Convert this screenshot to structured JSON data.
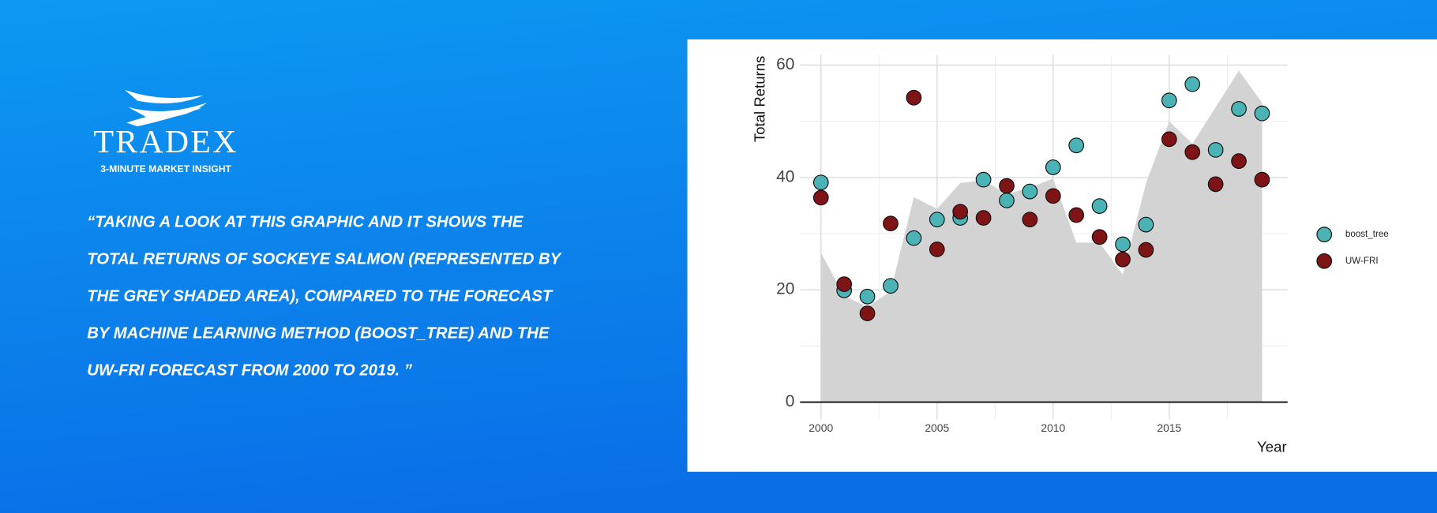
{
  "header": {
    "brand": "TRADEX",
    "tagline": "3-MINUTE MARKET INSIGHT"
  },
  "quote": [
    "“TAKING A LOOK AT THIS GRAPHIC AND IT SHOWS THE",
    "TOTAL RETURNS OF SOCKEYE SALMON (REPRESENTED BY",
    "THE GREY SHADED AREA), COMPARED TO THE FORECAST",
    "BY MACHINE LEARNING METHOD (BOOST_TREE) AND THE",
    "UW-FRI FORECAST FROM 2000 TO 2019. ”"
  ],
  "chart_data": {
    "type": "scatter",
    "x_label": "Year",
    "y_label": "Total Returns",
    "x": [
      2000,
      2001,
      2002,
      2003,
      2004,
      2005,
      2006,
      2007,
      2008,
      2009,
      2010,
      2011,
      2012,
      2013,
      2014,
      2015,
      2016,
      2017,
      2018,
      2019
    ],
    "area": {
      "color": "#d3d3d3",
      "values": [
        26.6,
        18.9,
        17,
        19.7,
        36.5,
        34.4,
        39,
        39.5,
        37,
        38.2,
        39.8,
        28.4,
        28.4,
        22.7,
        39,
        50,
        46,
        52.5,
        59,
        53.3
      ]
    },
    "series": [
      {
        "name": "boost_tree",
        "color": "#4bb3b5",
        "values": [
          39.1,
          19.9,
          18.8,
          20.7,
          29.2,
          32.5,
          32.8,
          39.6,
          35.9,
          37.5,
          41.8,
          45.7,
          34.9,
          28.1,
          31.6,
          53.7,
          56.6,
          44.9,
          52.2,
          51.4
        ]
      },
      {
        "name": "UW-FRI",
        "color": "#7f1416",
        "values": [
          36.4,
          21,
          15.8,
          31.8,
          54.2,
          27.2,
          33.9,
          32.8,
          38.5,
          32.5,
          36.7,
          33.3,
          29.4,
          25.4,
          27.1,
          46.8,
          44.5,
          38.8,
          42.9,
          39.6
        ]
      }
    ],
    "xlim": [
      1999.1,
      2020.1
    ],
    "ylim": [
      -3.1,
      61.8
    ],
    "xticks": [
      2000,
      2005,
      2010,
      2015
    ],
    "yticks": [
      0,
      20,
      40,
      60
    ],
    "x_minor_ticks": [
      2002.5,
      2007.5,
      2012.5,
      2017.5
    ],
    "y_minor_ticks": [
      10,
      30,
      50
    ],
    "grid": true,
    "legend": "right"
  }
}
